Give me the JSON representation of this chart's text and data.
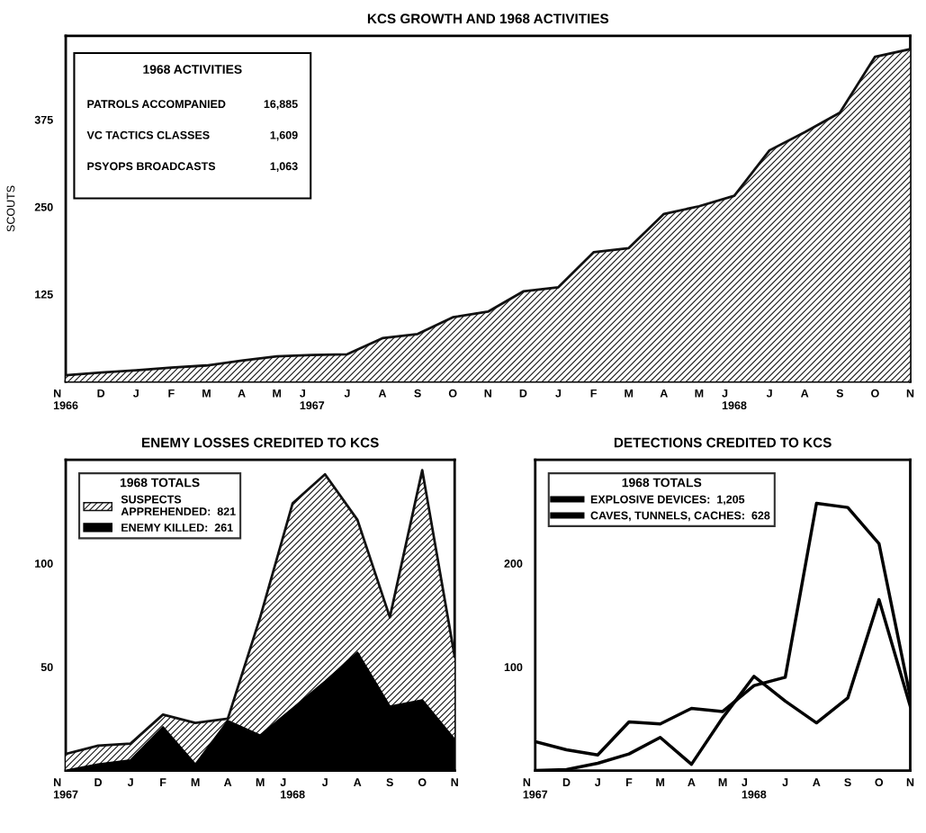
{
  "chart_data": [
    {
      "type": "area",
      "title": "KCS GROWTH AND 1968 ACTIVITIES",
      "ylabel": "SCOUTS",
      "categories": [
        "N\n1966",
        "D",
        "J",
        "F",
        "M",
        "A",
        "M",
        "J\n1967",
        "J",
        "A",
        "S",
        "O",
        "N",
        "D",
        "J",
        "F",
        "M",
        "A",
        "M",
        "J\n1968",
        "J",
        "A",
        "S",
        "O",
        "N"
      ],
      "series": [
        {
          "color": "#111111",
          "values": [
            9,
            13,
            16,
            20,
            23,
            30,
            36,
            38,
            39,
            62,
            68,
            92,
            100,
            129,
            135,
            185,
            191,
            240,
            251,
            266,
            331,
            357,
            385,
            465,
            476
          ]
        }
      ],
      "ylim": [
        0,
        495
      ],
      "yticks": [
        125,
        250,
        375
      ],
      "grid": false,
      "legend": false,
      "annotations": [
        "1968 ACTIVITIES",
        "PATROLS ACCOMPANIED",
        "16,885",
        "VC TACTICS CLASSES",
        "1,609",
        "PSYOPS BROADCASTS",
        "1,063"
      ]
    },
    {
      "type": "area",
      "title": "ENEMY LOSSES CREDITED TO KCS",
      "categories": [
        "N\n1967",
        "D",
        "J",
        "F",
        "M",
        "A",
        "M",
        "J\n1968",
        "J",
        "A",
        "S",
        "O",
        "N"
      ],
      "stacked": true,
      "legend_title": "1968 TOTALS",
      "legend": "top left",
      "grid": false,
      "series": [
        {
          "name": "ENEMY KILLED:  261",
          "color": "#000000",
          "values": [
            0,
            3,
            5,
            21,
            3,
            24,
            17,
            30,
            43,
            57,
            31,
            34,
            15
          ]
        },
        {
          "name": "SUSPECTS\nAPPREHENDED:  821",
          "color": "#111111",
          "values": [
            8,
            9,
            8,
            6,
            20,
            1,
            57,
            99,
            100,
            64,
            43,
            111,
            40
          ]
        }
      ],
      "ylim": [
        0,
        150
      ],
      "yticks": [
        50,
        100
      ]
    },
    {
      "type": "line",
      "title": "DETECTIONS CREDITED TO KCS",
      "categories": [
        "N\n1967",
        "D",
        "J",
        "F",
        "M",
        "A",
        "M",
        "J\n1968",
        "J",
        "A",
        "S",
        "O",
        "N"
      ],
      "legend_title": "1968 TOTALS",
      "legend": "top left",
      "grid": false,
      "series": [
        {
          "name": "EXPLOSIVE DEVICES:  1,205",
          "color": "#000000",
          "values": [
            28,
            20,
            15,
            47,
            45,
            60,
            57,
            82,
            90,
            258,
            254,
            219,
            71
          ]
        },
        {
          "name": "CAVES, TUNNELS, CACHES:  628",
          "color": "#000000",
          "values": [
            0,
            1,
            7,
            16,
            32,
            6,
            51,
            91,
            67,
            46,
            70,
            165,
            62
          ]
        }
      ],
      "ylim": [
        0,
        300
      ],
      "yticks": [
        100,
        200
      ]
    }
  ]
}
